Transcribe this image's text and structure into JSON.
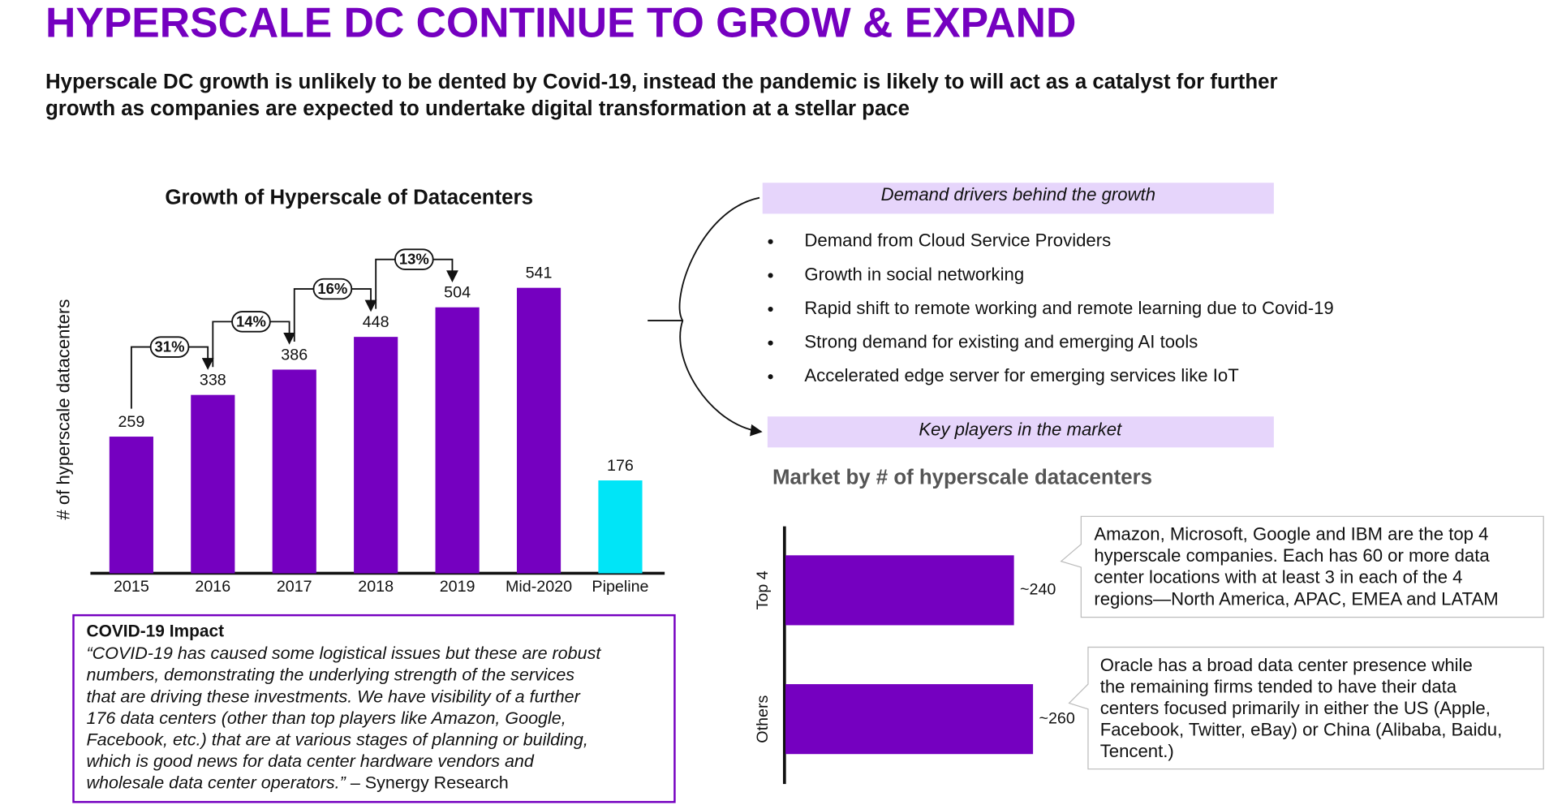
{
  "title": "HYPERSCALE DC CONTINUE TO GROW & EXPAND",
  "subtitle_lines": [
    "Hyperscale DC growth is unlikely to be dented by Covid-19, instead the pandemic is likely to will act as a catalyst for further",
    "growth as companies are expected to undertake digital transformation at a stellar pace"
  ],
  "chart_data": [
    {
      "type": "bar",
      "title": "Growth of Hyperscale of Datacenters",
      "ylabel": "# of  hyperscale datacenters",
      "categories": [
        "2015",
        "2016",
        "2017",
        "2018",
        "2019",
        "Mid-2020",
        "Pipeline"
      ],
      "values": [
        259,
        338,
        386,
        448,
        504,
        541,
        176
      ],
      "colors": [
        "#7500c0",
        "#7500c0",
        "#7500c0",
        "#7500c0",
        "#7500c0",
        "#7500c0",
        "#00e5f7"
      ],
      "growth_labels": [
        "31%",
        "14%",
        "16%",
        "13%"
      ],
      "ylim": [
        0,
        600
      ]
    },
    {
      "type": "hbar",
      "title": "Market by # of hyperscale datacenters",
      "categories": [
        "Top 4",
        "Others"
      ],
      "values": [
        240,
        260
      ],
      "value_labels": [
        "~240",
        "~260"
      ],
      "color": "#7500c0",
      "xlim": [
        0,
        300
      ]
    }
  ],
  "drivers": {
    "header": "Demand drivers behind the growth",
    "items": [
      "Demand from Cloud Service Providers",
      "Growth in social networking",
      "Rapid shift to remote working and remote learning due to Covid-19",
      "Strong demand for existing and emerging AI tools",
      "Accelerated edge server for emerging services like IoT"
    ]
  },
  "players_header": "Key players in the market",
  "callouts": [
    {
      "lines": [
        "Amazon, Microsoft, Google and IBM are the top 4",
        "hyperscale companies. Each has 60 or more data",
        "center locations with at least 3 in each of the 4",
        "regions—North America, APAC, EMEA and LATAM"
      ]
    },
    {
      "lines": [
        "Oracle has a broad data center presence while",
        "the remaining firms tended to have their data",
        "centers focused primarily in either the US (Apple,",
        "Facebook, Twitter, eBay) or China (Alibaba, Baidu,",
        "Tencent.)"
      ]
    }
  ],
  "covid": {
    "title": "COVID-19 Impact",
    "lines": [
      "“COVID-19 has caused some logistical issues but these are robust",
      "numbers, demonstrating the underlying strength of the services",
      "that are driving these investments. We have visibility of a further",
      "176 data centers (other than top players like Amazon, Google,",
      "Facebook, etc.) that are at various stages of planning or building,",
      "which is good news for data center hardware vendors and",
      "wholesale data center operators.”"
    ],
    "source": "– Synergy Research"
  }
}
